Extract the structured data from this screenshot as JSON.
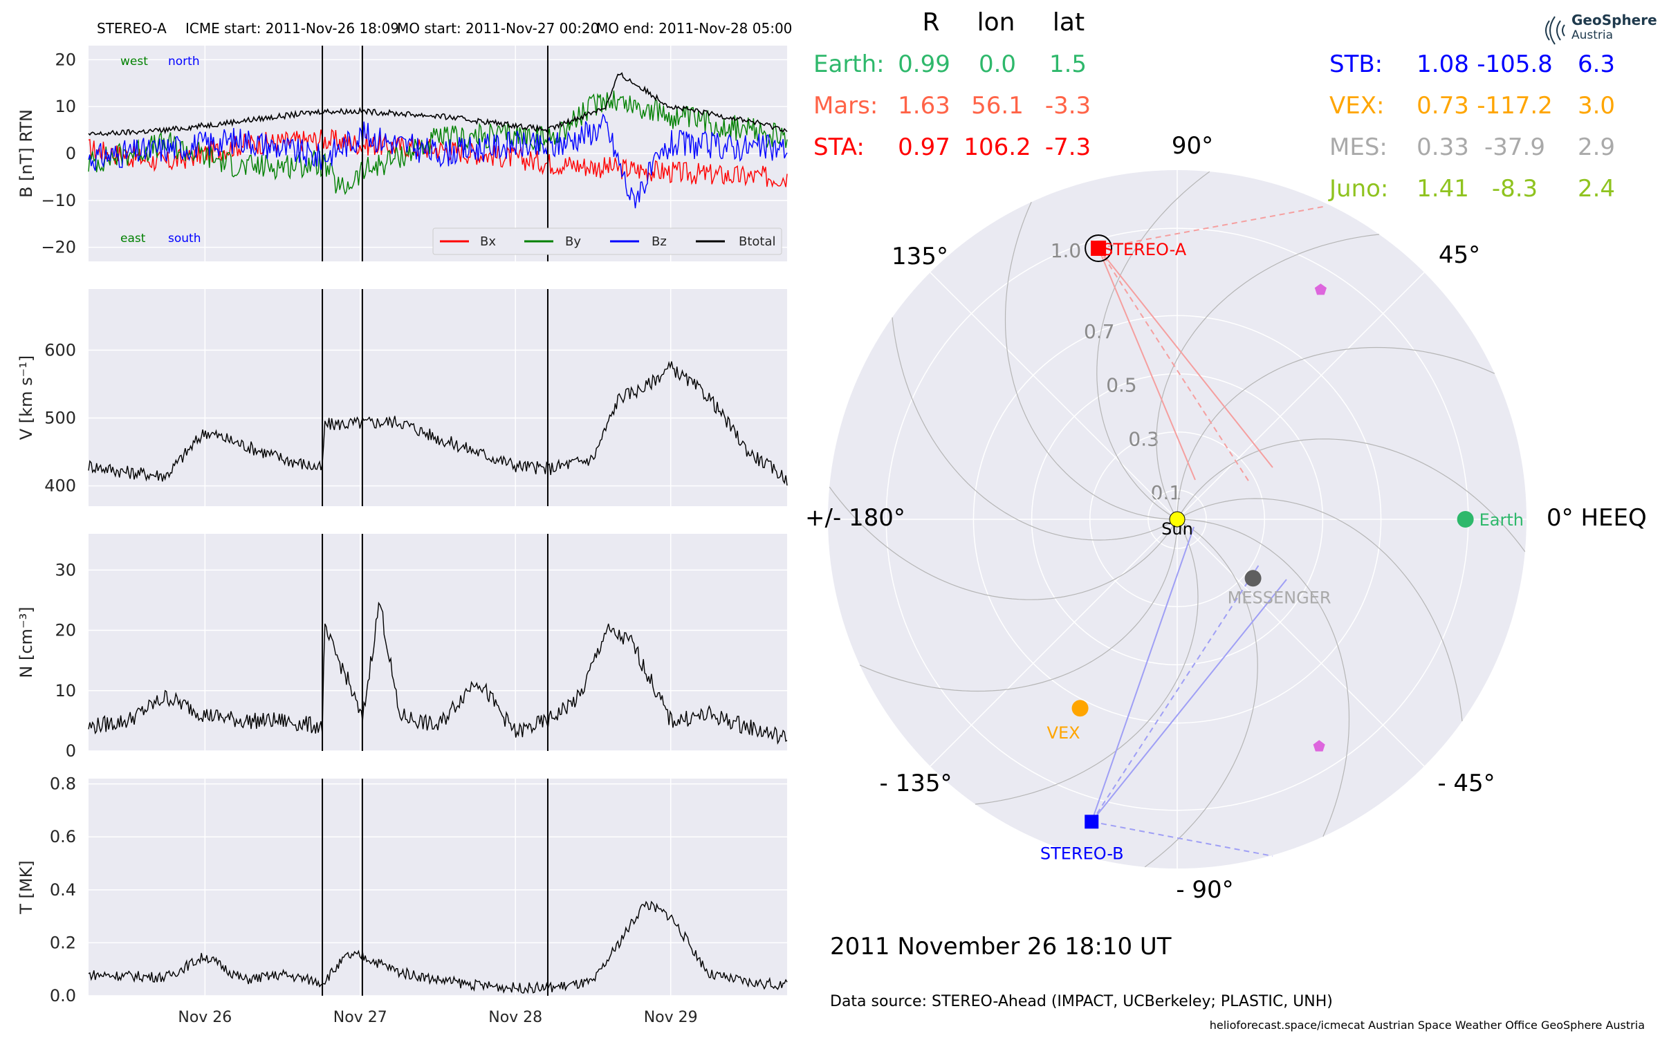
{
  "header": {
    "spacecraft": "STEREO-A",
    "icme_start": "ICME start: 2011-Nov-26 18:09",
    "mo_start": "MO start: 2011-Nov-27 00:20",
    "mo_end": "MO end: 2011-Nov-28 05:00"
  },
  "logo": {
    "line1": "GeoSphere",
    "line2": "Austria"
  },
  "footer": {
    "datetime": "2011 November 26  18:10 UT",
    "data_source": "Data source: STEREO-Ahead (IMPACT, UCBerkeley; PLASTIC, UNH)",
    "credits": "helioforecast.space/icmecat   Austrian Space Weather Office   GeoSphere Austria"
  },
  "colors": {
    "panel_bg": "#eaeaf2",
    "grid": "#ffffff",
    "bx": "#ff0000",
    "by": "#008000",
    "bz": "#0000ff",
    "btotal": "#000000",
    "earth": "#2eb86b",
    "mars": "#ff6347",
    "sta": "#ff0000",
    "stb": "#0000ff",
    "vex": "#ffa500",
    "mes": "#a9a9a9",
    "juno": "#8fc31f",
    "sun": "#ffff00",
    "stb_fov": "#9f9ff5",
    "sta_fov": "#f59f9f",
    "psp_marker": "#dd66dd"
  },
  "chart_data": [
    {
      "type": "line",
      "panel": "magnetic-field",
      "ylabel": "B [nT] RTN",
      "ylim": [
        -23,
        23
      ],
      "yticks": [
        20,
        10,
        0,
        -10,
        -20
      ],
      "ytick_labels": [
        "20",
        "10",
        "0",
        "−10",
        "−20"
      ],
      "x_range_days": [
        "2011-11-25 06:00",
        "2011-11-29 18:00"
      ],
      "xticks": [
        "2011-11-26",
        "2011-11-27",
        "2011-11-28",
        "2011-11-29"
      ],
      "xtick_labels": [
        "Nov 26",
        "Nov 27",
        "Nov 28",
        "Nov 29"
      ],
      "vlines": [
        "2011-11-26 18:09",
        "2011-11-27 00:20",
        "2011-11-28 05:00"
      ],
      "annotations": {
        "top_left": "west",
        "top_right": "north",
        "bottom_left": "east",
        "bottom_right": "south"
      },
      "legend": {
        "placement": "lower right",
        "labels": [
          "Bx",
          "By",
          "Bz",
          "Btotal"
        ]
      },
      "series": [
        {
          "name": "Bx",
          "x": [
            "2011-11-25 06:00",
            "2011-11-25 18:00",
            "2011-11-26 06:00",
            "2011-11-26 18:09",
            "2011-11-27 00:20",
            "2011-11-27 12:00",
            "2011-11-28 00:00",
            "2011-11-28 05:00",
            "2011-11-28 14:00",
            "2011-11-29 00:00",
            "2011-11-29 12:00",
            "2011-11-29 18:00"
          ],
          "y": [
            1,
            -2,
            2,
            3,
            2,
            1,
            -1,
            -2,
            -3,
            -4,
            -5,
            -5
          ]
        },
        {
          "name": "By",
          "x": [
            "2011-11-25 06:00",
            "2011-11-25 18:00",
            "2011-11-26 06:00",
            "2011-11-26 18:09",
            "2011-11-26 21:00",
            "2011-11-27 00:20",
            "2011-11-27 12:00",
            "2011-11-28 00:00",
            "2011-11-28 05:00",
            "2011-11-28 14:00",
            "2011-11-29 00:00",
            "2011-11-29 12:00",
            "2011-11-29 18:00"
          ],
          "y": [
            -2,
            2,
            -3,
            -2,
            -8,
            -4,
            3,
            4,
            3,
            12,
            8,
            5,
            3
          ]
        },
        {
          "name": "Bz",
          "x": [
            "2011-11-25 06:00",
            "2011-11-25 18:00",
            "2011-11-26 06:00",
            "2011-11-26 18:09",
            "2011-11-27 00:20",
            "2011-11-27 12:00",
            "2011-11-28 00:00",
            "2011-11-28 05:00",
            "2011-11-28 14:00",
            "2011-11-28 18:00",
            "2011-11-29 00:00",
            "2011-11-29 18:00"
          ],
          "y": [
            -1,
            1,
            3,
            -1,
            4,
            0,
            2,
            1,
            6,
            -10,
            2,
            1
          ]
        },
        {
          "name": "Btotal",
          "x": [
            "2011-11-25 06:00",
            "2011-11-25 18:00",
            "2011-11-26 06:00",
            "2011-11-26 18:09",
            "2011-11-27 00:20",
            "2011-11-27 12:00",
            "2011-11-28 00:00",
            "2011-11-28 05:00",
            "2011-11-28 14:00",
            "2011-11-28 16:00",
            "2011-11-29 00:00",
            "2011-11-29 12:00",
            "2011-11-29 18:00"
          ],
          "y": [
            4,
            5,
            7,
            9,
            9,
            8,
            6,
            5,
            10,
            17,
            10,
            7,
            5
          ]
        }
      ]
    },
    {
      "type": "line",
      "panel": "speed",
      "ylabel": "V [km s⁻¹]",
      "ylim": [
        370,
        690
      ],
      "yticks": [
        400,
        500,
        600
      ],
      "ytick_labels": [
        "400",
        "500",
        "600"
      ],
      "vlines": [
        "2011-11-26 18:09",
        "2011-11-27 00:20",
        "2011-11-28 05:00"
      ],
      "series": [
        {
          "name": "V",
          "x": [
            "2011-11-25 06:00",
            "2011-11-25 12:00",
            "2011-11-25 18:00",
            "2011-11-26 00:00",
            "2011-11-26 06:00",
            "2011-11-26 12:00",
            "2011-11-26 18:09",
            "2011-11-26 18:30",
            "2011-11-27 06:00",
            "2011-11-27 12:00",
            "2011-11-27 18:00",
            "2011-11-28 00:00",
            "2011-11-28 05:00",
            "2011-11-28 12:00",
            "2011-11-28 16:00",
            "2011-11-28 20:00",
            "2011-11-29 00:00",
            "2011-11-29 06:00",
            "2011-11-29 12:00",
            "2011-11-29 18:00"
          ],
          "y": [
            430,
            420,
            415,
            480,
            460,
            440,
            425,
            490,
            495,
            470,
            450,
            430,
            425,
            440,
            530,
            545,
            575,
            530,
            450,
            410
          ]
        }
      ]
    },
    {
      "type": "line",
      "panel": "density",
      "ylabel": "N [cm⁻³]",
      "ylim": [
        0,
        36
      ],
      "yticks": [
        0,
        10,
        20,
        30
      ],
      "ytick_labels": [
        "0",
        "10",
        "20",
        "30"
      ],
      "vlines": [
        "2011-11-26 18:09",
        "2011-11-27 00:20",
        "2011-11-28 05:00"
      ],
      "series": [
        {
          "name": "N",
          "x": [
            "2011-11-25 06:00",
            "2011-11-25 12:00",
            "2011-11-25 18:00",
            "2011-11-26 00:00",
            "2011-11-26 06:00",
            "2011-11-26 12:00",
            "2011-11-26 18:09",
            "2011-11-26 18:30",
            "2011-11-26 22:00",
            "2011-11-27 00:20",
            "2011-11-27 03:00",
            "2011-11-27 06:00",
            "2011-11-27 12:00",
            "2011-11-27 18:00",
            "2011-11-28 00:00",
            "2011-11-28 05:00",
            "2011-11-28 10:00",
            "2011-11-28 14:00",
            "2011-11-28 18:00",
            "2011-11-29 00:00",
            "2011-11-29 06:00",
            "2011-11-29 12:00",
            "2011-11-29 18:00"
          ],
          "y": [
            4,
            5,
            9,
            6,
            5,
            5,
            4,
            20,
            12,
            5,
            25,
            6,
            4,
            12,
            3,
            5,
            9,
            20,
            18,
            5,
            6,
            4,
            2
          ]
        }
      ]
    },
    {
      "type": "line",
      "panel": "temperature",
      "ylabel": "T [MK]",
      "ylim": [
        0,
        0.82
      ],
      "yticks": [
        0.0,
        0.2,
        0.4,
        0.6,
        0.8
      ],
      "ytick_labels": [
        "0.0",
        "0.2",
        "0.4",
        "0.6",
        "0.8"
      ],
      "vlines": [
        "2011-11-26 18:09",
        "2011-11-27 00:20",
        "2011-11-28 05:00"
      ],
      "series": [
        {
          "name": "T",
          "x": [
            "2011-11-25 06:00",
            "2011-11-25 18:00",
            "2011-11-26 00:00",
            "2011-11-26 06:00",
            "2011-11-26 12:00",
            "2011-11-26 18:09",
            "2011-11-26 22:00",
            "2011-11-27 00:20",
            "2011-11-27 06:00",
            "2011-11-27 12:00",
            "2011-11-27 18:00",
            "2011-11-28 00:00",
            "2011-11-28 05:00",
            "2011-11-28 12:00",
            "2011-11-28 16:00",
            "2011-11-28 20:00",
            "2011-11-29 00:00",
            "2011-11-29 06:00",
            "2011-11-29 12:00",
            "2011-11-29 18:00"
          ],
          "y": [
            0.08,
            0.07,
            0.15,
            0.06,
            0.08,
            0.05,
            0.15,
            0.15,
            0.09,
            0.06,
            0.04,
            0.03,
            0.03,
            0.05,
            0.2,
            0.35,
            0.3,
            0.08,
            0.05,
            0.04
          ]
        }
      ]
    },
    {
      "type": "scatter",
      "panel": "polar-orbit-plot",
      "coordinate_system": "0° HEEQ",
      "angle_labels": [
        "0° HEEQ",
        "45°",
        "90°",
        "135°",
        "+/- 180°",
        "- 135°",
        "- 90°",
        "- 45°"
      ],
      "r_tick_values": [
        0.1,
        0.3,
        0.5,
        0.7,
        1.0
      ],
      "r_tick_labels": [
        "0.1",
        "0.3",
        "0.5",
        "0.7",
        "1.0"
      ],
      "r_max_au": 1.2,
      "bodies": [
        {
          "name": "Sun",
          "r": 0.0,
          "lon": 0.0,
          "label": "Sun",
          "marker": "circle"
        },
        {
          "name": "Earth",
          "r": 0.99,
          "lon": 0.0,
          "label": "Earth",
          "marker": "circle"
        },
        {
          "name": "STEREO-A",
          "r": 0.97,
          "lon": 106.2,
          "label": "STEREO-A",
          "marker": "square"
        },
        {
          "name": "STEREO-B",
          "r": 1.08,
          "lon": -105.8,
          "label": "STEREO-B",
          "marker": "square"
        },
        {
          "name": "VEX",
          "r": 0.73,
          "lon": -117.2,
          "label": "VEX",
          "marker": "circle"
        },
        {
          "name": "MESSENGER",
          "r": 0.33,
          "lon": -37.9,
          "label": "MESSENGER",
          "marker": "circle"
        },
        {
          "name": "PSP-marker-1",
          "r": 0.93,
          "lon": 58.0,
          "label": "",
          "marker": "pentagon"
        },
        {
          "name": "PSP-marker-2",
          "r": 0.92,
          "lon": -58.0,
          "label": "",
          "marker": "pentagon"
        }
      ]
    }
  ],
  "positions_table": {
    "headers": [
      "R",
      "lon",
      "lat"
    ],
    "left": [
      {
        "name": "Earth:",
        "r": "0.99",
        "lon": "0.0",
        "lat": "1.5",
        "color_key": "earth"
      },
      {
        "name": "Mars:",
        "r": "1.63",
        "lon": "56.1",
        "lat": "-3.3",
        "color_key": "mars"
      },
      {
        "name": "STA:",
        "r": "0.97",
        "lon": "106.2",
        "lat": "-7.3",
        "color_key": "sta"
      }
    ],
    "right": [
      {
        "name": "STB:",
        "r": "1.08",
        "lon": "-105.8",
        "lat": "6.3",
        "color_key": "stb"
      },
      {
        "name": "VEX:",
        "r": "0.73",
        "lon": "-117.2",
        "lat": "3.0",
        "color_key": "vex"
      },
      {
        "name": "MES:",
        "r": "0.33",
        "lon": "-37.9",
        "lat": "2.9",
        "color_key": "mes"
      },
      {
        "name": "Juno:",
        "r": "1.41",
        "lon": "-8.3",
        "lat": "2.4",
        "color_key": "juno"
      }
    ]
  }
}
